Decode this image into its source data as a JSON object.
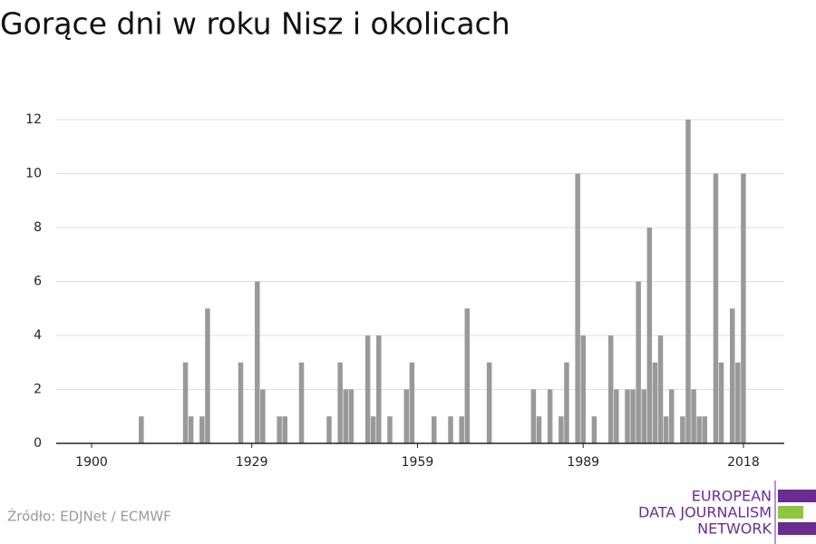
{
  "chart_data": {
    "type": "bar",
    "title": "Gorące dni w roku Nisz i okolicach",
    "x": [
      1909,
      1917,
      1918,
      1920,
      1921,
      1927,
      1930,
      1931,
      1934,
      1935,
      1938,
      1943,
      1945,
      1946,
      1947,
      1950,
      1951,
      1952,
      1954,
      1957,
      1958,
      1962,
      1965,
      1967,
      1968,
      1972,
      1980,
      1981,
      1983,
      1985,
      1986,
      1988,
      1989,
      1991,
      1994,
      1995,
      1997,
      1998,
      1999,
      2000,
      2001,
      2002,
      2003,
      2004,
      2005,
      2007,
      2008,
      2009,
      2010,
      2011,
      2013,
      2014,
      2016,
      2017,
      2018
    ],
    "values": [
      1,
      3,
      1,
      1,
      5,
      3,
      6,
      2,
      1,
      1,
      3,
      1,
      3,
      2,
      2,
      4,
      1,
      4,
      1,
      2,
      3,
      1,
      1,
      1,
      5,
      3,
      2,
      1,
      2,
      1,
      3,
      10,
      4,
      1,
      4,
      2,
      2,
      2,
      6,
      2,
      8,
      3,
      4,
      1,
      2,
      1,
      12,
      2,
      1,
      1,
      10,
      3,
      5,
      3,
      10
    ],
    "color": "#999999",
    "xlim": [
      1893.6,
      2025.4
    ],
    "xticks": [
      1900,
      1929,
      1959,
      1989,
      2018
    ],
    "ylim": [
      0,
      12
    ],
    "yticks": [
      0,
      2,
      4,
      6,
      8,
      10,
      12
    ],
    "grid": true,
    "source": "Źródło: EDJNet / ECMWF"
  },
  "logo": {
    "lines": [
      "EUROPEAN",
      "DATA JOURNALISM",
      "NETWORK"
    ]
  }
}
